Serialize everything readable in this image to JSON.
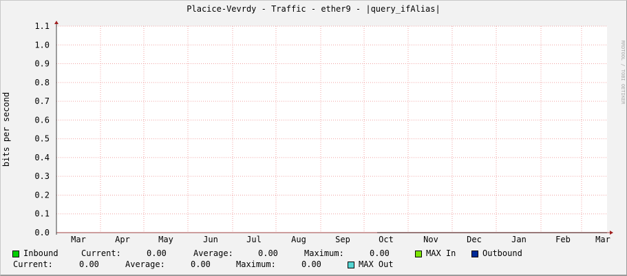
{
  "chart_data": {
    "type": "line",
    "title": "Placice-Vevrdy - Traffic - ether9 - |query_ifAlias|",
    "ylabel": "bits per second",
    "xlabel": "",
    "ylim": [
      0,
      1.1
    ],
    "y_ticks": [
      "0.0",
      "0.1",
      "0.2",
      "0.3",
      "0.4",
      "0.5",
      "0.6",
      "0.7",
      "0.8",
      "0.9",
      "1.0",
      "1.1"
    ],
    "x_ticks": [
      "Mar",
      "Apr",
      "May",
      "Jun",
      "Jul",
      "Aug",
      "Sep",
      "Oct",
      "Nov",
      "Dec",
      "Jan",
      "Feb",
      "Mar"
    ],
    "grid": true,
    "series": [
      {
        "name": "Inbound",
        "color": "#00CF00",
        "values_from": "Oct",
        "value": 0
      },
      {
        "name": "Outbound",
        "color": "#002A97",
        "values_from": "Oct",
        "value": 0
      },
      {
        "name": "MAX In",
        "color": "#7CE600",
        "value": 0
      },
      {
        "name": "MAX Out",
        "color": "#55D6D3",
        "value": 0
      }
    ],
    "watermark": "RRDTOOL / TOBI OETIKER"
  },
  "legend": {
    "inbound": {
      "label": "Inbound",
      "current_label": "Current:",
      "current": "0.00",
      "average_label": "Average:",
      "average": "0.00",
      "maximum_label": "Maximum:",
      "maximum": "0.00"
    },
    "max_in": "MAX In",
    "outbound": {
      "label": "Outbound",
      "current_label": "Current:",
      "current": "0.00",
      "average_label": "Average:",
      "average": "0.00",
      "maximum_label": "Maximum:",
      "maximum": "0.00"
    },
    "max_out": "MAX Out"
  }
}
